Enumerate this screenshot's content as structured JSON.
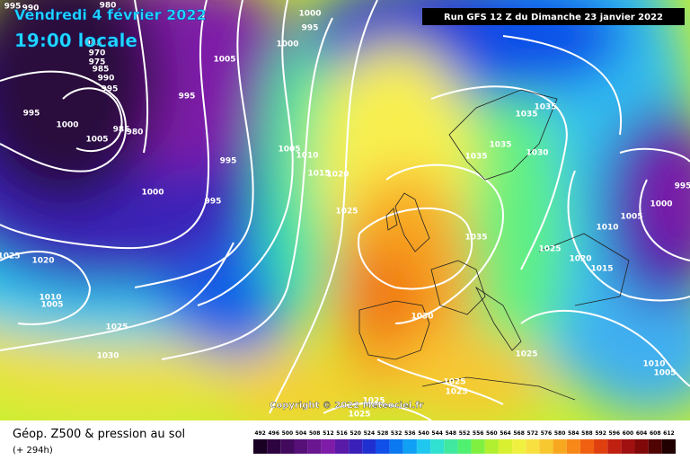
{
  "header": {
    "valid_date": "Vendredi 4 février 2022",
    "local_time": "19:00 locale",
    "run": "Run GFS 12 Z du Dimanche 23 janvier 2022"
  },
  "copyright": "Copyright © 2022 Meteociel.fr",
  "footer": {
    "title": "Géop. Z500 & pression au sol",
    "lead_time": "(+ 294h)"
  },
  "legend": {
    "values": [
      492,
      496,
      500,
      504,
      508,
      512,
      516,
      520,
      524,
      528,
      532,
      536,
      540,
      544,
      548,
      552,
      556,
      560,
      564,
      568,
      572,
      576,
      580,
      584,
      588,
      592,
      596,
      600,
      604,
      608,
      612
    ],
    "colors": [
      "#1a0022",
      "#2e0440",
      "#420a5c",
      "#561078",
      "#6a1690",
      "#7e1ca8",
      "#5a1aa8",
      "#3a20b8",
      "#2030d0",
      "#1050e8",
      "#0a78f0",
      "#10a0f4",
      "#20c8f0",
      "#30e0d0",
      "#40e8a0",
      "#50f070",
      "#80f040",
      "#b0f030",
      "#d8f030",
      "#f0f040",
      "#f8e040",
      "#f8c830",
      "#f8a820",
      "#f88818",
      "#f06010",
      "#e04010",
      "#c02010",
      "#a01010",
      "#800808",
      "#500404",
      "#200000"
    ]
  },
  "isobar_labels": [
    995,
    990,
    980,
    985,
    970,
    975,
    985,
    990,
    995,
    1000,
    995,
    1000,
    1005,
    995,
    995,
    1000,
    1005,
    985,
    980,
    1005,
    1010,
    995,
    1015,
    1020,
    1000,
    995,
    1025,
    1025,
    1020,
    1010,
    1005,
    1025,
    1030,
    1030,
    1035,
    1035,
    1035,
    1030,
    1035,
    1035,
    1025,
    1020,
    1015,
    1010,
    1005,
    1000,
    995,
    1025,
    1010,
    1005,
    1025,
    1025,
    1025,
    1025
  ]
}
